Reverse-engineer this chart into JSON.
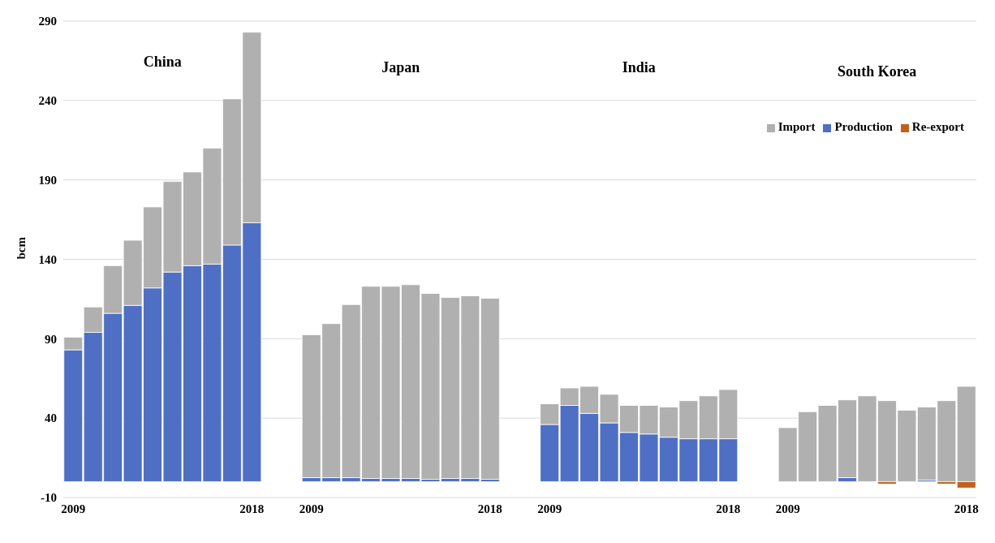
{
  "chart_data": {
    "type": "bar",
    "ylabel": "bcm",
    "stacked": true,
    "categories": [
      "2009",
      null,
      null,
      null,
      null,
      null,
      null,
      null,
      null,
      "2018",
      null,
      null,
      "2009",
      null,
      null,
      null,
      null,
      null,
      null,
      null,
      null,
      "2018",
      null,
      null,
      "2009",
      null,
      null,
      null,
      null,
      null,
      null,
      null,
      null,
      "2018",
      null,
      null,
      "2009",
      null,
      null,
      null,
      null,
      null,
      null,
      null,
      null,
      "2018"
    ],
    "series": [
      {
        "name": "Production",
        "color": "#4f6fc4",
        "values": [
          83,
          94,
          106,
          111,
          122,
          132,
          136,
          137,
          149,
          163,
          null,
          null,
          2.5,
          2.5,
          2.5,
          2,
          2,
          2,
          1.5,
          2,
          2,
          1.5,
          null,
          null,
          36,
          48,
          43,
          37,
          31,
          30,
          28,
          27,
          27,
          27,
          null,
          null,
          0,
          0,
          0,
          2.5,
          0,
          0,
          0,
          1,
          0,
          0
        ]
      },
      {
        "name": "Import",
        "color": "#b0b0b0",
        "values": [
          8,
          16,
          30,
          41,
          51,
          57,
          59,
          73,
          92,
          120,
          null,
          null,
          90,
          97,
          109,
          121,
          121,
          122,
          117,
          114,
          115,
          114,
          null,
          null,
          13,
          11,
          17,
          18,
          17,
          18,
          19,
          24,
          27,
          31,
          null,
          null,
          34,
          44,
          48,
          49,
          54,
          51,
          45,
          46,
          51,
          60
        ]
      },
      {
        "name": "Re-export",
        "color": "#c0621a",
        "values": [
          0,
          0,
          0,
          0,
          0,
          0,
          0,
          0,
          0,
          0,
          null,
          null,
          0,
          0,
          0,
          0,
          0,
          0,
          0,
          0,
          0,
          0,
          null,
          null,
          0,
          0,
          0,
          0,
          0,
          0,
          0,
          0,
          0,
          0,
          null,
          null,
          0,
          0,
          0,
          0,
          0,
          -1.5,
          0,
          0,
          -1.5,
          -4
        ]
      }
    ],
    "annotations": [
      "China",
      "Japan",
      "India",
      "South Korea"
    ],
    "ylim": [
      -10,
      290
    ],
    "yticks": [
      -10,
      40,
      90,
      140,
      190,
      240,
      290
    ],
    "grid": "y",
    "legend": "top right"
  }
}
